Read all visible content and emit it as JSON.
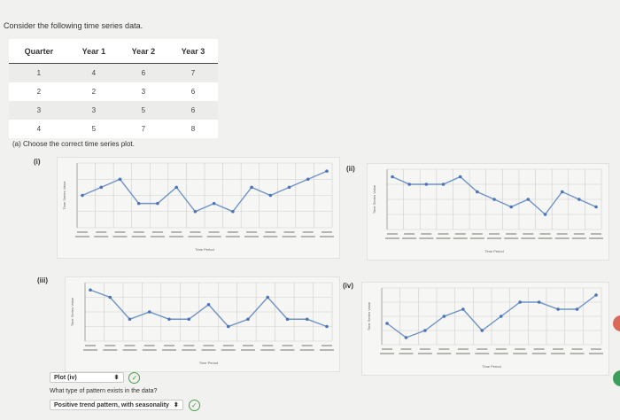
{
  "intro": "Consider the following time series data.",
  "table": {
    "headers": [
      "Quarter",
      "Year 1",
      "Year 2",
      "Year 3"
    ],
    "rows": [
      [
        "1",
        "4",
        "6",
        "7"
      ],
      [
        "2",
        "2",
        "3",
        "6"
      ],
      [
        "3",
        "3",
        "5",
        "6"
      ],
      [
        "4",
        "5",
        "7",
        "8"
      ]
    ]
  },
  "question_a": "(a) Choose the correct time series plot.",
  "options": [
    {
      "label": "(i)",
      "values": [
        5,
        6,
        7,
        4,
        4,
        6,
        3,
        4,
        3,
        6,
        5,
        6,
        7,
        8
      ]
    },
    {
      "label": "(ii)",
      "values": [
        8,
        7,
        7,
        7,
        8,
        6,
        5,
        4,
        5,
        3,
        6,
        5,
        4
      ]
    },
    {
      "label": "(iii)",
      "values": [
        8,
        7,
        4,
        5,
        4,
        4,
        6,
        3,
        4,
        7,
        4,
        4,
        3
      ]
    },
    {
      "label": "(iv)",
      "values": [
        4,
        2,
        3,
        5,
        6,
        3,
        5,
        7,
        7,
        6,
        6,
        8
      ]
    }
  ],
  "axis_labels": {
    "y": "Time Series Value",
    "x": "Time Period"
  },
  "answer": {
    "plot_selected": "Plot (iv)",
    "pattern_question": "What type of pattern exists in the data?",
    "pattern_selected": "Positive trend pattern, with seasonality"
  },
  "colors": {
    "line": "#6f93c6",
    "point": "#4b73b7",
    "grid": "#cfcfcc",
    "check": "#4a9e4a",
    "tab_top": "#d96a5a",
    "tab_bottom": "#3b9e5a"
  }
}
